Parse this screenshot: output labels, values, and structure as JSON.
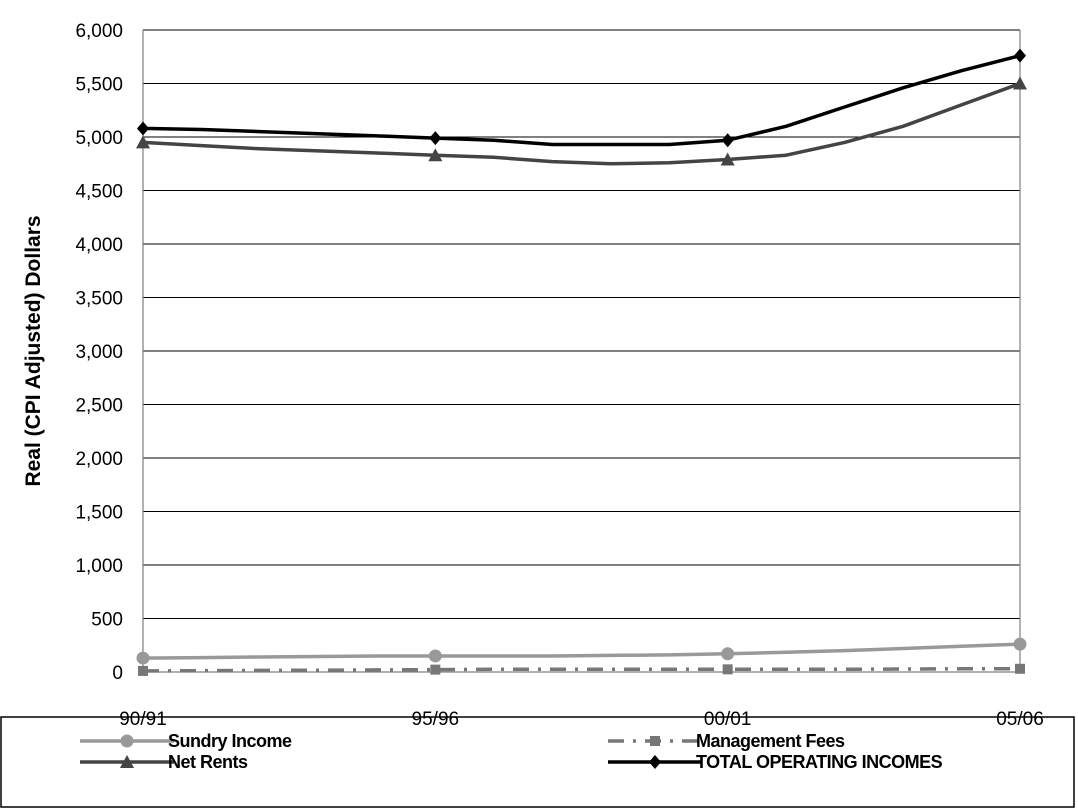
{
  "chart_data": {
    "type": "line",
    "title": "",
    "xlabel": "",
    "ylabel": "Real (CPI Adjusted) Dollars",
    "x_labels": [
      "90/91",
      "95/96",
      "00/01",
      "05/06"
    ],
    "x_range": [
      0,
      15
    ],
    "ylim": [
      0,
      6000
    ],
    "y_ticks": [
      0,
      500,
      1000,
      1500,
      2000,
      2500,
      3000,
      3500,
      4000,
      4500,
      5000,
      5500,
      6000
    ],
    "y_tick_labels": [
      "0",
      "500",
      "1,000",
      "1,500",
      "2,000",
      "2,500",
      "3,000",
      "3,500",
      "4,000",
      "4,500",
      "5,000",
      "5,500",
      "6,000"
    ],
    "grid": "horizontal",
    "legend_position": "bottom",
    "series": [
      {
        "name": "Sundry Income",
        "color": "#999999",
        "style": "solid",
        "marker": "circle",
        "marker_indices": [
          0,
          5,
          10,
          15
        ],
        "x": [
          0,
          1,
          2,
          3,
          4,
          5,
          6,
          7,
          8,
          9,
          10,
          11,
          12,
          13,
          14,
          15
        ],
        "y": [
          130,
          135,
          140,
          145,
          150,
          150,
          150,
          150,
          155,
          160,
          170,
          185,
          200,
          220,
          240,
          260
        ]
      },
      {
        "name": "Management Fees",
        "color": "#777777",
        "style": "dashed",
        "marker": "square",
        "marker_indices": [
          0,
          5,
          10,
          15
        ],
        "x": [
          0,
          1,
          2,
          3,
          4,
          5,
          6,
          7,
          8,
          9,
          10,
          11,
          12,
          13,
          14,
          15
        ],
        "y": [
          10,
          12,
          15,
          17,
          20,
          22,
          25,
          25,
          25,
          25,
          25,
          25,
          25,
          28,
          30,
          30
        ]
      },
      {
        "name": "Net Rents",
        "color": "#444444",
        "style": "solid",
        "marker": "triangle",
        "marker_indices": [
          0,
          5,
          10,
          15
        ],
        "x": [
          0,
          1,
          2,
          3,
          4,
          5,
          6,
          7,
          8,
          9,
          10,
          11,
          12,
          13,
          14,
          15
        ],
        "y": [
          4950,
          4920,
          4890,
          4870,
          4850,
          4830,
          4810,
          4770,
          4750,
          4760,
          4790,
          4830,
          4950,
          5100,
          5300,
          5500
        ]
      },
      {
        "name": "TOTAL OPERATING INCOMES",
        "color": "#000000",
        "style": "solid",
        "marker": "diamond",
        "marker_indices": [
          0,
          5,
          10,
          15
        ],
        "x": [
          0,
          1,
          2,
          3,
          4,
          5,
          6,
          7,
          8,
          9,
          10,
          11,
          12,
          13,
          14,
          15
        ],
        "y": [
          5080,
          5070,
          5050,
          5030,
          5010,
          4990,
          4970,
          4930,
          4930,
          4930,
          4970,
          5100,
          5280,
          5460,
          5620,
          5760
        ]
      }
    ]
  }
}
